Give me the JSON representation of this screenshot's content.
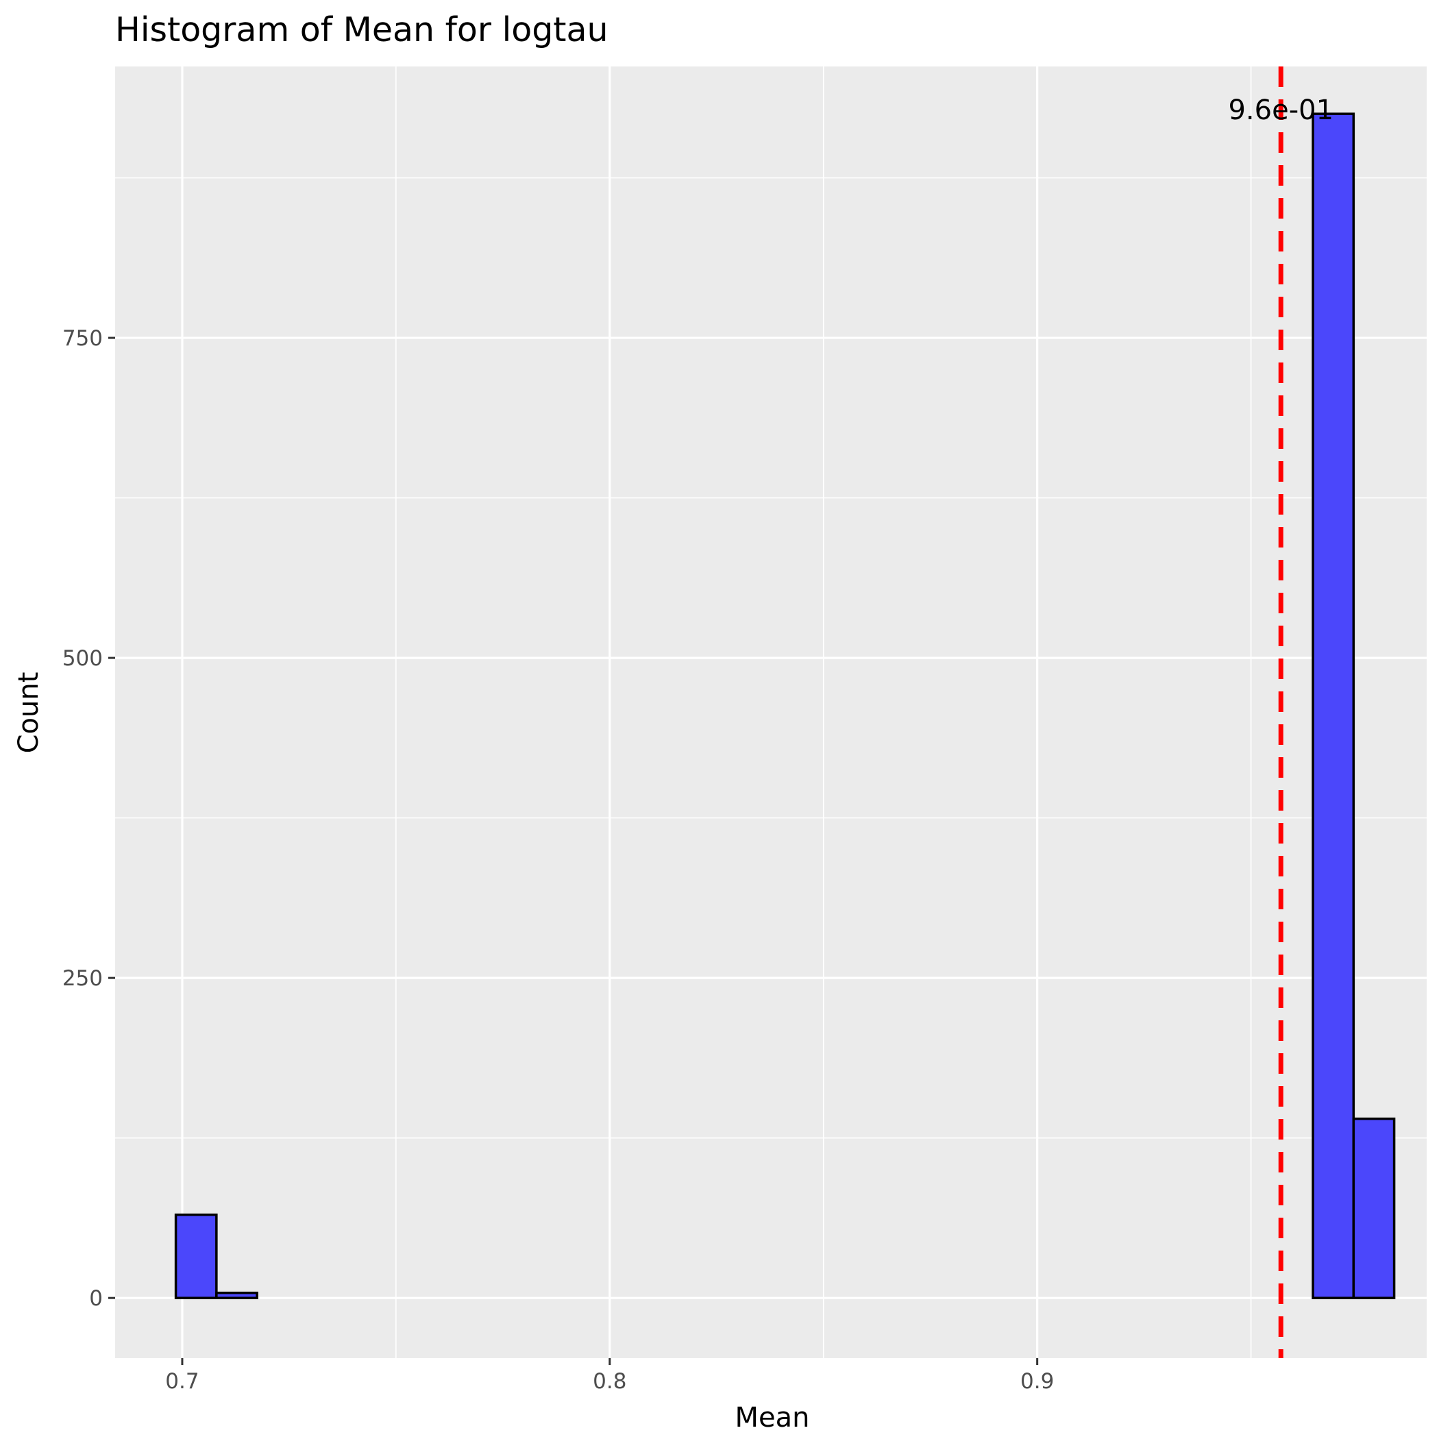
{
  "chart_data": {
    "type": "bar",
    "title": "Histogram of Mean for logtau",
    "xlabel": "Mean",
    "ylabel": "Count",
    "x_ticks": [
      0.7,
      0.8,
      0.9
    ],
    "x_tick_labels": [
      "0.7",
      "0.8",
      "0.9"
    ],
    "y_ticks": [
      0,
      250,
      500,
      750
    ],
    "y_tick_labels": [
      "0",
      "250",
      "500",
      "750"
    ],
    "xlim": [
      0.6843,
      0.9911
    ],
    "ylim": [
      -47,
      962
    ],
    "grid": true,
    "bin_width": 0.0095,
    "bins": [
      {
        "x0": 0.6985,
        "x1": 0.708,
        "count": 65
      },
      {
        "x0": 0.708,
        "x1": 0.7175,
        "count": 4
      },
      {
        "x0": 0.7175,
        "x1": 0.727,
        "count": 0
      },
      {
        "x0": 0.727,
        "x1": 0.7365,
        "count": 0
      },
      {
        "x0": 0.7365,
        "x1": 0.746,
        "count": 0
      },
      {
        "x0": 0.746,
        "x1": 0.7555,
        "count": 0
      },
      {
        "x0": 0.7555,
        "x1": 0.765,
        "count": 0
      },
      {
        "x0": 0.765,
        "x1": 0.7745,
        "count": 0
      },
      {
        "x0": 0.7745,
        "x1": 0.784,
        "count": 0
      },
      {
        "x0": 0.784,
        "x1": 0.7935,
        "count": 0
      },
      {
        "x0": 0.7935,
        "x1": 0.803,
        "count": 0
      },
      {
        "x0": 0.803,
        "x1": 0.8125,
        "count": 0
      },
      {
        "x0": 0.8125,
        "x1": 0.822,
        "count": 0
      },
      {
        "x0": 0.822,
        "x1": 0.8315,
        "count": 0
      },
      {
        "x0": 0.8315,
        "x1": 0.841,
        "count": 0
      },
      {
        "x0": 0.841,
        "x1": 0.8505,
        "count": 0
      },
      {
        "x0": 0.8505,
        "x1": 0.86,
        "count": 0
      },
      {
        "x0": 0.86,
        "x1": 0.8695,
        "count": 0
      },
      {
        "x0": 0.8695,
        "x1": 0.879,
        "count": 0
      },
      {
        "x0": 0.879,
        "x1": 0.8885,
        "count": 0
      },
      {
        "x0": 0.8885,
        "x1": 0.898,
        "count": 0
      },
      {
        "x0": 0.898,
        "x1": 0.9075,
        "count": 0
      },
      {
        "x0": 0.9075,
        "x1": 0.917,
        "count": 0
      },
      {
        "x0": 0.917,
        "x1": 0.9265,
        "count": 0
      },
      {
        "x0": 0.9265,
        "x1": 0.936,
        "count": 0
      },
      {
        "x0": 0.936,
        "x1": 0.9455,
        "count": 0
      },
      {
        "x0": 0.9455,
        "x1": 0.955,
        "count": 0
      },
      {
        "x0": 0.955,
        "x1": 0.9645,
        "count": 0
      },
      {
        "x0": 0.9645,
        "x1": 0.974,
        "count": 925
      },
      {
        "x0": 0.974,
        "x1": 0.9835,
        "count": 140
      }
    ],
    "reference_line": {
      "x": 0.957,
      "label": "9.6e-01",
      "color": "#ff0000",
      "style": "dashed"
    },
    "colors": {
      "bar_fill": "#4b47fb",
      "bar_stroke": "#000000",
      "panel": "#ebebeb",
      "grid": "#ffffff"
    }
  }
}
